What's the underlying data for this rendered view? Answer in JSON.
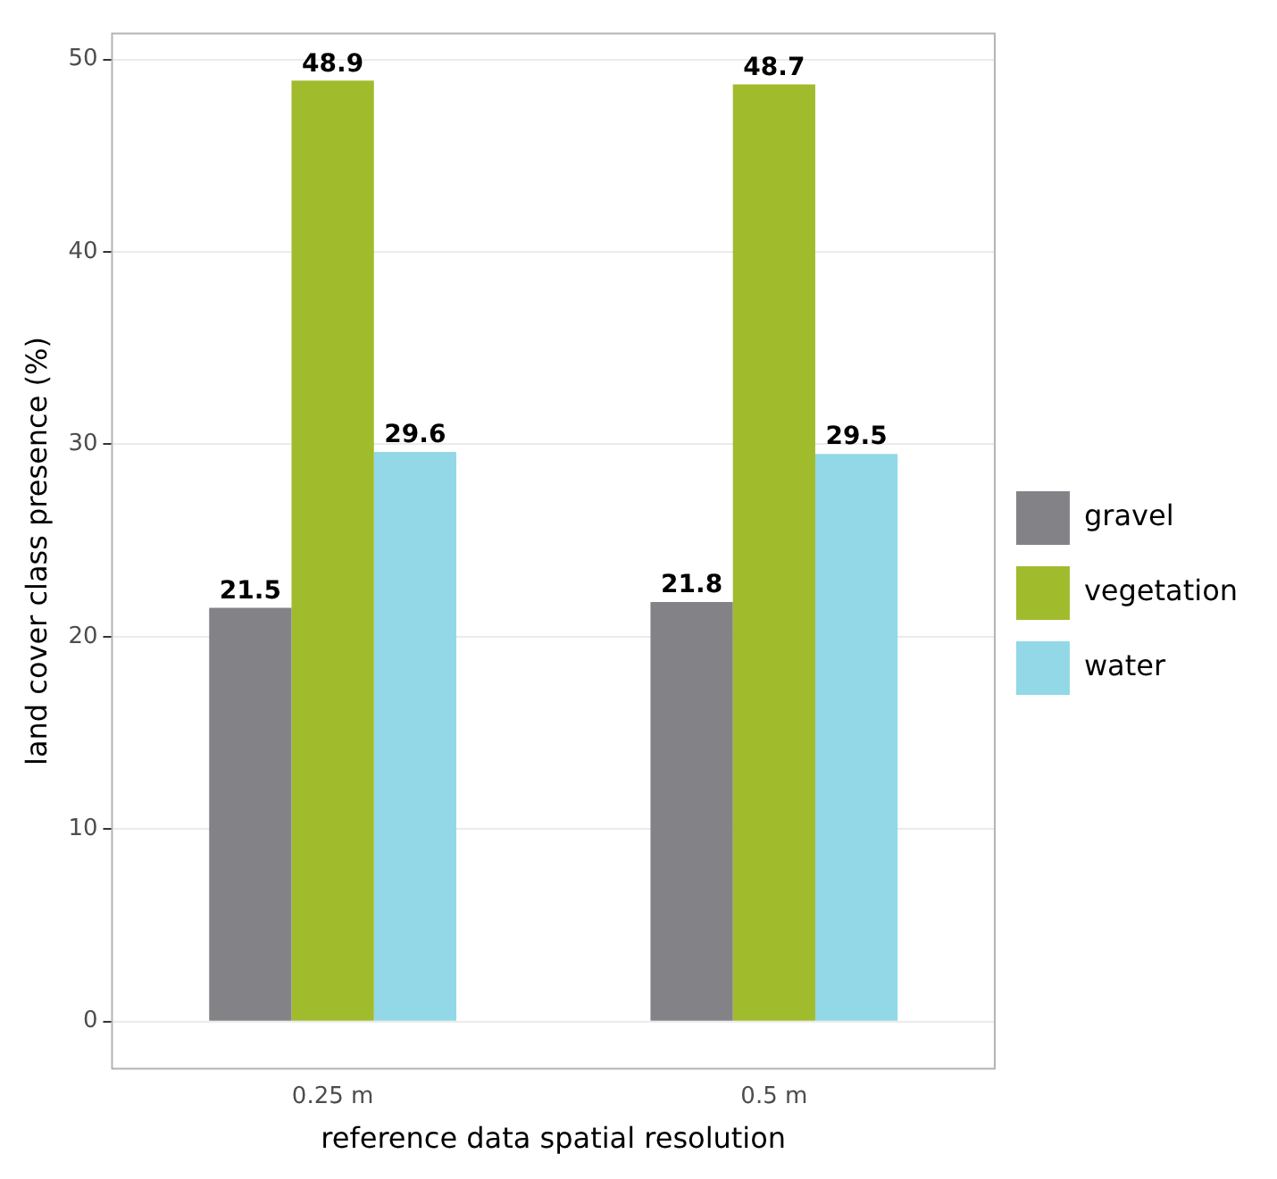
{
  "chart_data": {
    "type": "bar",
    "xlabel": "reference data spatial resolution",
    "ylabel": "land cover class presence (%)",
    "categories": [
      "0.25 m",
      "0.5 m"
    ],
    "series": [
      {
        "name": "gravel",
        "color": "#838387",
        "values": [
          21.5,
          21.8
        ]
      },
      {
        "name": "vegetation",
        "color": "#a0bb2c",
        "values": [
          48.9,
          48.7
        ]
      },
      {
        "name": "water",
        "color": "#92d8e7",
        "values": [
          29.6,
          29.5
        ]
      }
    ],
    "ylim": [
      -2.445,
      51.345
    ],
    "yticks": [
      0,
      10,
      20,
      30,
      40,
      50
    ],
    "grid": "y",
    "legend": "right",
    "data_labels": true
  }
}
